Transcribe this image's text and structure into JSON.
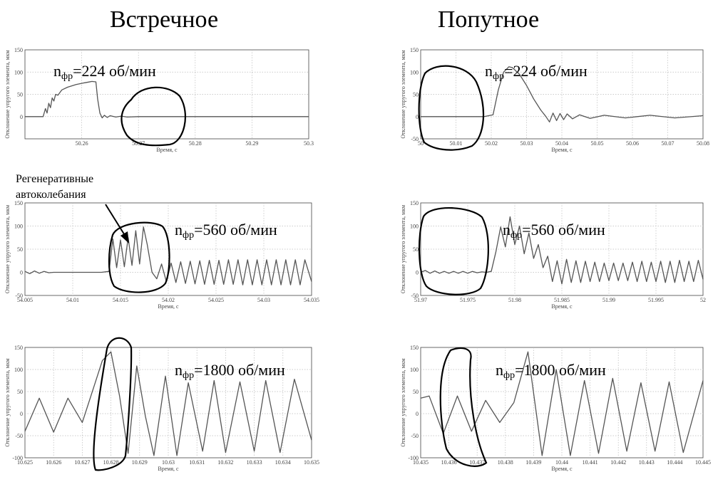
{
  "titles": {
    "left": "Встречное",
    "right": "Попутное"
  },
  "annotation": {
    "line1": "Регенеративные",
    "line2": "автоколебания"
  },
  "speed_units": "об/мин",
  "speed_label_n": "n",
  "speed_label_sub": "фр",
  "chart_data": [
    {
      "type": "line",
      "title": "",
      "speed": "224",
      "xlabel": "Время, с",
      "ylabel": "Отклонение упругого элемента, мкм",
      "xlim": [
        50.25,
        50.3
      ],
      "ylim": [
        -50,
        150
      ],
      "xticks": [
        "",
        "50.26",
        "50.27",
        "50.28",
        "50.29",
        "50.3"
      ],
      "yticks": [
        "",
        "0",
        "50",
        "100",
        "150"
      ],
      "xtick_values": [
        50.25,
        50.26,
        50.27,
        50.28,
        50.29,
        50.3
      ],
      "ytick_values": [
        -50,
        0,
        50,
        100,
        150
      ],
      "grid": true,
      "series": [
        {
          "x": [
            50.25,
            50.2532,
            50.2536,
            50.2539,
            50.2542,
            50.2545,
            50.2548,
            50.2551,
            50.2554,
            50.2558,
            50.2565,
            50.2575,
            50.259,
            50.2605,
            50.2618,
            50.2625,
            50.2628,
            50.2632,
            50.2636,
            50.264,
            50.2645,
            50.265,
            50.266,
            50.267,
            50.268,
            50.27,
            50.275,
            50.28,
            50.285,
            50.29,
            50.295,
            50.3
          ],
          "y": [
            0,
            0,
            18,
            8,
            30,
            20,
            42,
            35,
            50,
            48,
            60,
            66,
            72,
            76,
            79,
            78,
            40,
            8,
            -3,
            3,
            -2,
            2,
            -1,
            1,
            -1,
            0,
            0,
            0,
            0,
            0,
            0,
            0
          ]
        }
      ]
    },
    {
      "type": "line",
      "title": "",
      "speed": "224",
      "xlabel": "Время, с",
      "ylabel": "Отклонение упругого элемента, мкм",
      "xlim": [
        50.0,
        50.08
      ],
      "ylim": [
        -50,
        150
      ],
      "xticks": [
        "50",
        "50.01",
        "50.02",
        "50.03",
        "50.04",
        "50.05",
        "50.06",
        "50.07",
        "50.08"
      ],
      "yticks": [
        "-50",
        "0",
        "50",
        "100",
        "150"
      ],
      "xtick_values": [
        50.0,
        50.01,
        50.02,
        50.03,
        50.04,
        50.05,
        50.06,
        50.07,
        50.08
      ],
      "ytick_values": [
        -50,
        0,
        50,
        100,
        150
      ],
      "grid": true,
      "series": [
        {
          "x": [
            50.0,
            50.01,
            50.018,
            50.0205,
            50.022,
            50.0235,
            50.025,
            50.026,
            50.028,
            50.03,
            50.032,
            50.034,
            50.0355,
            50.0365,
            50.0375,
            50.0385,
            50.0395,
            50.0405,
            50.0415,
            50.043,
            50.045,
            50.048,
            50.052,
            50.058,
            50.065,
            50.072,
            50.08
          ],
          "y": [
            0,
            0,
            0,
            4,
            60,
            100,
            112,
            110,
            95,
            70,
            40,
            15,
            0,
            -12,
            8,
            -9,
            7,
            -7,
            6,
            -5,
            4,
            -4,
            3,
            -3,
            3,
            -3,
            2
          ]
        }
      ]
    },
    {
      "type": "line",
      "title": "",
      "speed": "560",
      "xlabel": "Время, с",
      "ylabel": "Отклонение упругого элемента, мкм",
      "xlim": [
        54.005,
        54.035
      ],
      "ylim": [
        -50,
        150
      ],
      "xticks": [
        "54.005",
        "54.01",
        "54.015",
        "54.02",
        "54.025",
        "54.03",
        "54.035"
      ],
      "yticks": [
        "-50",
        "0",
        "50",
        "100",
        "150"
      ],
      "xtick_values": [
        54.005,
        54.01,
        54.015,
        54.02,
        54.025,
        54.03,
        54.035
      ],
      "ytick_values": [
        -50,
        0,
        50,
        100,
        150
      ],
      "grid": true,
      "series": [
        {
          "x": [
            54.005,
            54.0055,
            54.006,
            54.0065,
            54.007,
            54.0075,
            54.008,
            54.009,
            54.01,
            54.011,
            54.012,
            54.013,
            54.0138,
            54.0142,
            54.0146,
            54.015,
            54.0154,
            54.0158,
            54.0162,
            54.0166,
            54.017,
            54.0174,
            54.0178,
            54.0183,
            54.0188,
            54.0193,
            54.0198,
            54.0203,
            54.0208,
            54.0213,
            54.0218,
            54.0223,
            54.0228,
            54.0233,
            54.0238,
            54.0243,
            54.0248,
            54.0253,
            54.0258,
            54.0263,
            54.0268,
            54.0273,
            54.0278,
            54.0283,
            54.0288,
            54.0293,
            54.0298,
            54.0303,
            54.0308,
            54.0313,
            54.0318,
            54.0323,
            54.0328,
            54.0333,
            54.0338,
            54.0343,
            54.035
          ],
          "y": [
            2,
            -3,
            3,
            -2,
            2,
            -1,
            0,
            0,
            0,
            0,
            0,
            0,
            2,
            72,
            10,
            70,
            12,
            75,
            15,
            90,
            18,
            98,
            60,
            0,
            -14,
            18,
            -20,
            20,
            -22,
            23,
            -24,
            24,
            -25,
            25,
            -26,
            26,
            -26,
            26,
            -26,
            27,
            -26,
            27,
            -27,
            27,
            -27,
            27,
            -27,
            27,
            -27,
            27,
            -27,
            27,
            -27,
            27,
            -27,
            27,
            -20
          ]
        }
      ]
    },
    {
      "type": "line",
      "title": "",
      "speed": "560",
      "xlabel": "Время, с",
      "ylabel": "Отклонение упругого элемента, мкм",
      "xlim": [
        51.97,
        52.0
      ],
      "ylim": [
        -50,
        150
      ],
      "xticks": [
        "51.97",
        "51.975",
        "51.98",
        "51.985",
        "51.99",
        "51.995",
        "52"
      ],
      "yticks": [
        "-50",
        "0",
        "50",
        "100",
        "150"
      ],
      "xtick_values": [
        51.97,
        51.975,
        51.98,
        51.985,
        51.99,
        51.995,
        52.0
      ],
      "ytick_values": [
        -50,
        0,
        50,
        100,
        150
      ],
      "grid": true,
      "series": [
        {
          "x": [
            51.97,
            51.9705,
            51.971,
            51.9715,
            51.972,
            51.9725,
            51.973,
            51.9735,
            51.974,
            51.9745,
            51.975,
            51.9755,
            51.976,
            51.9765,
            51.977,
            51.9775,
            51.978,
            51.9785,
            51.979,
            51.9795,
            51.98,
            51.9805,
            51.981,
            51.9815,
            51.982,
            51.9825,
            51.983,
            51.9835,
            51.984,
            51.9845,
            51.985,
            51.9855,
            51.986,
            51.9865,
            51.987,
            51.9875,
            51.988,
            51.9885,
            51.989,
            51.9895,
            51.99,
            51.9905,
            51.991,
            51.9915,
            51.992,
            51.9925,
            51.993,
            51.9935,
            51.994,
            51.9945,
            51.995,
            51.9955,
            51.996,
            51.9965,
            51.997,
            51.9975,
            51.998,
            51.9985,
            51.999,
            51.9995,
            52.0
          ],
          "y": [
            0,
            4,
            -2,
            3,
            -2,
            2,
            -2,
            2,
            -2,
            2,
            -2,
            2,
            -1,
            1,
            0,
            2,
            45,
            98,
            55,
            120,
            60,
            100,
            40,
            85,
            30,
            60,
            10,
            35,
            -20,
            25,
            -25,
            28,
            -22,
            25,
            -22,
            24,
            -20,
            22,
            -20,
            20,
            -18,
            20,
            -18,
            20,
            -18,
            22,
            -20,
            24,
            -20,
            22,
            -20,
            24,
            -22,
            24,
            -22,
            26,
            -20,
            24,
            -20,
            26,
            -15
          ]
        }
      ]
    },
    {
      "type": "line",
      "title": "",
      "speed": "1800",
      "xlabel": "Время, с",
      "ylabel": "Отклонение упругого элемента, мкм",
      "xlim": [
        10.625,
        10.635
      ],
      "ylim": [
        -100,
        150
      ],
      "xticks": [
        "10.625",
        "10.626",
        "10.627",
        "10.628",
        "10.629",
        "10.63",
        "10.631",
        "10.632",
        "10.633",
        "10.634",
        "10.635"
      ],
      "yticks": [
        "-100",
        "-50",
        "0",
        "50",
        "100",
        "150"
      ],
      "xtick_values": [
        10.625,
        10.626,
        10.627,
        10.628,
        10.629,
        10.63,
        10.631,
        10.632,
        10.633,
        10.634,
        10.635
      ],
      "ytick_values": [
        -100,
        -50,
        0,
        50,
        100,
        150
      ],
      "grid": true,
      "series": [
        {
          "x": [
            10.625,
            10.6255,
            10.626,
            10.6265,
            10.627,
            10.6274,
            10.6277,
            10.628,
            10.6283,
            10.6286,
            10.6289,
            10.6292,
            10.6295,
            10.6299,
            10.6303,
            10.6307,
            10.6312,
            10.6316,
            10.632,
            10.6325,
            10.633,
            10.6334,
            10.6339,
            10.6344,
            10.635
          ],
          "y": [
            -40,
            35,
            -42,
            35,
            -20,
            60,
            120,
            140,
            40,
            -90,
            108,
            -5,
            -95,
            85,
            -95,
            70,
            -85,
            75,
            -88,
            72,
            -85,
            75,
            -88,
            78,
            -60
          ]
        }
      ]
    },
    {
      "type": "line",
      "title": "",
      "speed": "1800",
      "xlabel": "Время, с",
      "ylabel": "Отклонение упругого элемента, мкм",
      "xlim": [
        10.435,
        10.445
      ],
      "ylim": [
        -100,
        150
      ],
      "xticks": [
        "10.435",
        "10.436",
        "10.437",
        "10.438",
        "10.439",
        "10.44",
        "10.441",
        "10.442",
        "10.443",
        "10.444",
        "10.445"
      ],
      "yticks": [
        "-100",
        "-50",
        "0",
        "50",
        "100",
        "150"
      ],
      "xtick_values": [
        10.435,
        10.436,
        10.437,
        10.438,
        10.439,
        10.44,
        10.441,
        10.442,
        10.443,
        10.444,
        10.445
      ],
      "ytick_values": [
        -100,
        -50,
        0,
        50,
        100,
        150
      ],
      "grid": true,
      "series": [
        {
          "x": [
            10.435,
            10.4353,
            10.4358,
            10.4363,
            10.4368,
            10.4373,
            10.4378,
            10.4383,
            10.4388,
            10.4393,
            10.4398,
            10.4403,
            10.4408,
            10.4413,
            10.4418,
            10.4423,
            10.4428,
            10.4433,
            10.4438,
            10.4443,
            10.445
          ],
          "y": [
            35,
            40,
            -45,
            40,
            -40,
            30,
            -20,
            25,
            140,
            -95,
            100,
            -95,
            75,
            -90,
            80,
            -85,
            70,
            -85,
            72,
            -88,
            75
          ]
        }
      ]
    }
  ]
}
